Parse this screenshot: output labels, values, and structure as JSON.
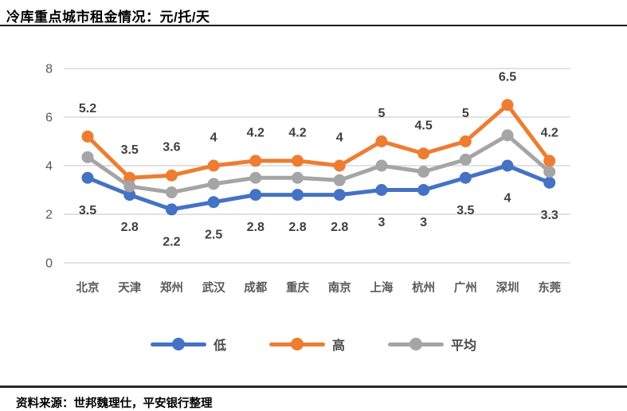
{
  "title": "冷库重点城市租金情况：元/托/天",
  "source": "资料来源：世邦魏理仕，平安银行整理",
  "chart_data": {
    "type": "line",
    "title": "冷库重点城市租金情况：元/托/天",
    "unit": "元/托/天",
    "categories": [
      "北京",
      "天津",
      "郑州",
      "武汉",
      "成都",
      "重庆",
      "南京",
      "上海",
      "杭州",
      "广州",
      "深圳",
      "东莞"
    ],
    "series": [
      {
        "name": "低",
        "color": "#4472C4",
        "values": [
          3.5,
          2.8,
          2.2,
          2.5,
          2.8,
          2.8,
          2.8,
          3,
          3,
          3.5,
          4,
          3.3
        ],
        "data_labels": "below"
      },
      {
        "name": "高",
        "color": "#ED7D31",
        "values": [
          5.2,
          3.5,
          3.6,
          4,
          4.2,
          4.2,
          4,
          5,
          4.5,
          5,
          6.5,
          4.2
        ],
        "data_labels": "above"
      },
      {
        "name": "平均",
        "color": "#A5A5A5",
        "values": [
          4.35,
          3.15,
          2.9,
          3.25,
          3.5,
          3.5,
          3.4,
          4,
          3.75,
          4.25,
          5.25,
          3.75
        ],
        "data_labels": "none"
      }
    ],
    "ylim": [
      0,
      8
    ],
    "y_ticks": [
      0,
      2,
      4,
      6,
      8
    ],
    "grid": true,
    "legend_position": "bottom",
    "colors": {
      "gridline": "#D9D9D9",
      "axis_tick_label": "#595959",
      "category_label": "#595959",
      "data_label": "#3f3f3f"
    }
  }
}
